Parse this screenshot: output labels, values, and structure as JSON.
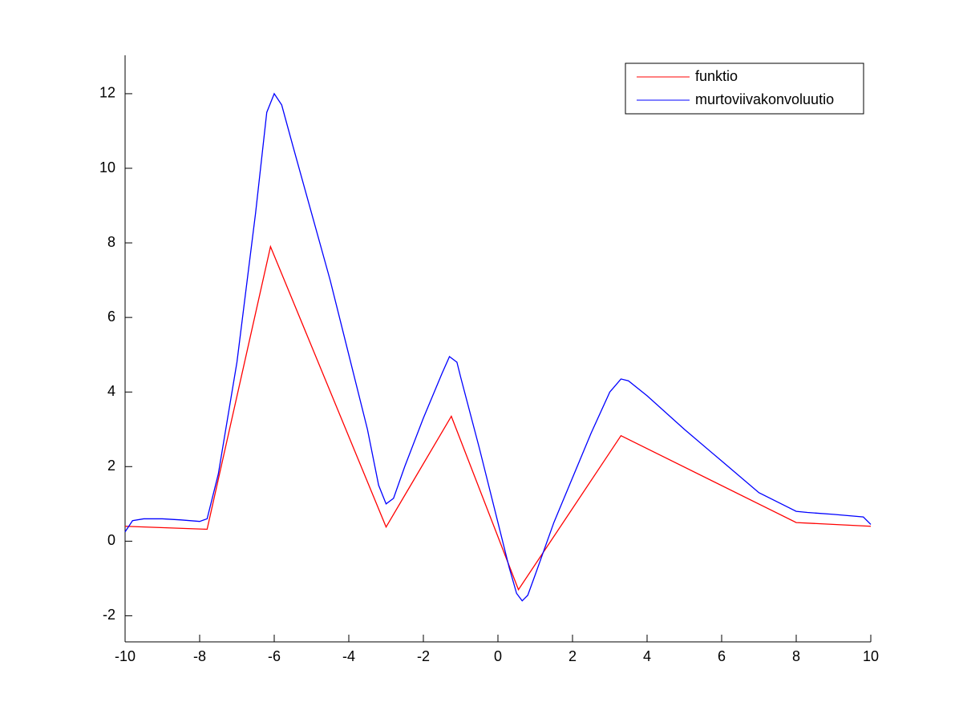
{
  "chart_data": {
    "type": "line",
    "xlim": [
      -10,
      10
    ],
    "xticks": [
      -10,
      -8,
      -6,
      -4,
      -2,
      0,
      2,
      4,
      6,
      8,
      10
    ],
    "ylim": [
      -2.7,
      13.03
    ],
    "yticks": [
      -2,
      0,
      2,
      4,
      6,
      8,
      10,
      12
    ],
    "legend": "northeast",
    "grid": false,
    "series": [
      {
        "name": "funktio",
        "color": "#ff0000",
        "x": [
          -10,
          -7.8,
          -6.1,
          -3,
          -1.25,
          0.55,
          3.3,
          8,
          10
        ],
        "values": [
          0.4,
          0.32,
          7.9,
          0.38,
          3.35,
          -1.3,
          2.83,
          0.5,
          0.4
        ]
      },
      {
        "name": "murtoviivakonvoluutio",
        "color": "#0000ff",
        "x": [
          -10,
          -9.8,
          -9.5,
          -9,
          -8.5,
          -8,
          -7.8,
          -7.5,
          -7,
          -6.5,
          -6.2,
          -6,
          -5.8,
          -5.5,
          -5,
          -4.5,
          -4,
          -3.5,
          -3.2,
          -3,
          -2.8,
          -2.5,
          -2,
          -1.5,
          -1.3,
          -1.1,
          -1,
          -0.5,
          0,
          0.3,
          0.5,
          0.65,
          0.8,
          1,
          1.5,
          2,
          2.5,
          3,
          3.3,
          3.5,
          4,
          5,
          6,
          7,
          7.8,
          8,
          8.3,
          9,
          9.8,
          10
        ],
        "values": [
          0.25,
          0.55,
          0.6,
          0.6,
          0.57,
          0.53,
          0.6,
          1.8,
          4.8,
          8.8,
          11.5,
          12,
          11.7,
          10.6,
          8.8,
          7,
          5,
          3,
          1.5,
          1.0,
          1.15,
          2,
          3.3,
          4.5,
          4.95,
          4.8,
          4.4,
          2.5,
          0.5,
          -0.7,
          -1.4,
          -1.6,
          -1.45,
          -0.9,
          0.5,
          1.7,
          2.9,
          4.0,
          4.35,
          4.3,
          3.9,
          3.0,
          2.15,
          1.3,
          0.9,
          0.8,
          0.77,
          0.72,
          0.65,
          0.45
        ]
      }
    ]
  }
}
